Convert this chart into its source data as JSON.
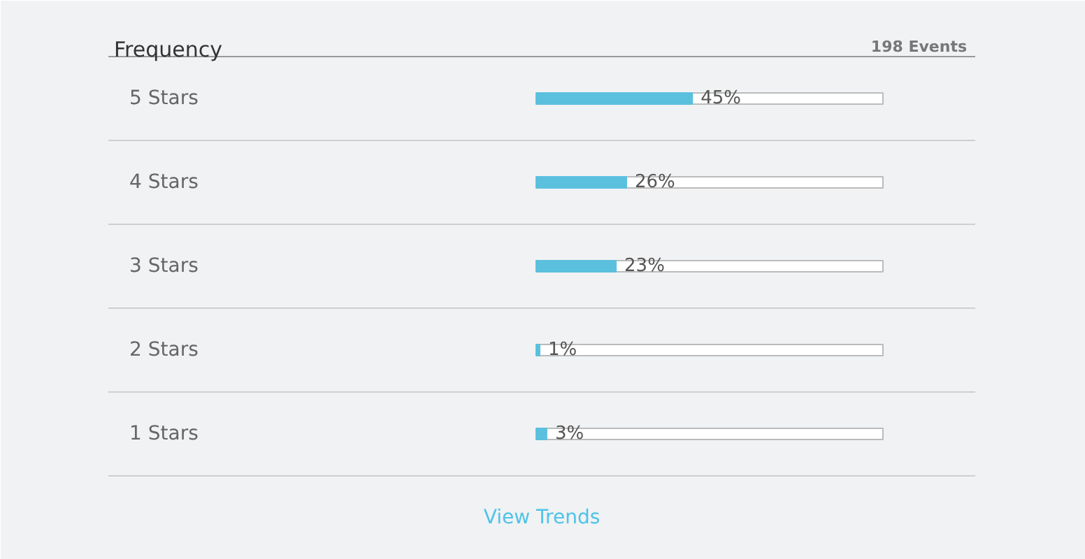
{
  "chart_data": {
    "type": "bar",
    "orientation": "horizontal",
    "title": "Frequency",
    "categories": [
      "5 Stars",
      "4 Stars",
      "3 Stars",
      "2 Stars",
      "1 Stars"
    ],
    "values": [
      45,
      26,
      23,
      1,
      3
    ],
    "value_labels": [
      "45%",
      "26%",
      "23%",
      "1%",
      "3%"
    ],
    "color": "#5bc0de",
    "annotations": [
      "198 Events",
      "View Trends"
    ]
  }
}
